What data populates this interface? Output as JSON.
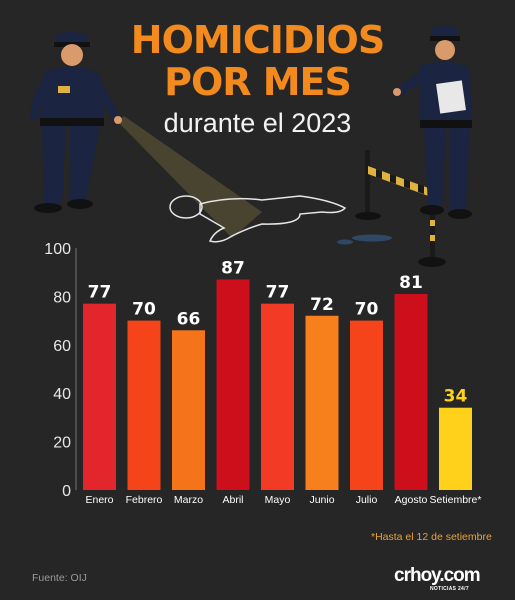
{
  "header": {
    "title_line1": "HOMICIDIOS",
    "title_line2": "POR MES",
    "subtitle": "durante el 2023"
  },
  "chart_data": {
    "type": "bar",
    "categories": [
      "Enero",
      "Febrero",
      "Marzo",
      "Abril",
      "Mayo",
      "Junio",
      "Julio",
      "Agosto",
      "Setiembre*"
    ],
    "values": [
      77,
      70,
      66,
      87,
      77,
      72,
      70,
      81,
      34
    ],
    "bar_colors": [
      "#e3262b",
      "#f5441a",
      "#f5741a",
      "#cc0f1a",
      "#f23a24",
      "#f7801c",
      "#f5441a",
      "#cc0f1a",
      "#ffd11a"
    ],
    "value_label_color": "#ffffff",
    "highlight_value_label_color": "#ffd11a",
    "ylim": [
      0,
      100
    ],
    "yticks": [
      0,
      20,
      40,
      60,
      80,
      100
    ],
    "grid": false
  },
  "footnote": "*Hasta el 12 de setiembre",
  "source": "Fuente: OIJ",
  "brand": {
    "name": "crhoy.com",
    "tagline": "NOTICIAS 24/7"
  },
  "colors": {
    "background": "#262626",
    "title": "#f28a1e",
    "officer_uniform": "#1b2440",
    "skin": "#d99a6c",
    "tape": "#e0b341"
  },
  "illustration": {
    "left_figure": "police-officer-with-flashlight-icon",
    "right_figure": "police-officer-with-clipboard-icon",
    "body_outline": "body-outline-icon",
    "barrier": "police-tape-barrier-icon"
  }
}
